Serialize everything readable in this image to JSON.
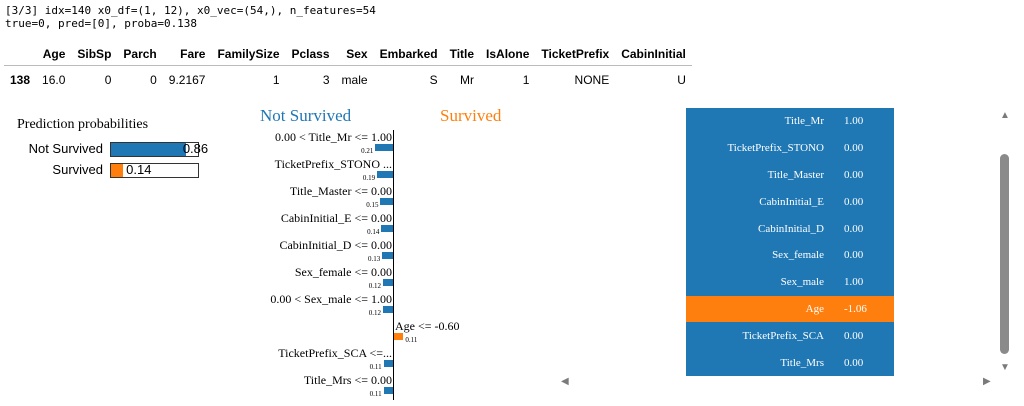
{
  "log": {
    "line1": "[3/3] idx=140 x0_df=(1, 12), x0_vec=(54,), n_features=54",
    "line2": "true=0, pred=[0], proba=0.138"
  },
  "dataframe": {
    "columns": [
      "",
      "Age",
      "SibSp",
      "Parch",
      "Fare",
      "FamilySize",
      "Pclass",
      "Sex",
      "Embarked",
      "Title",
      "IsAlone",
      "TicketPrefix",
      "CabinInitial"
    ],
    "row": [
      "138",
      "16.0",
      "0",
      "0",
      "9.2167",
      "1",
      "3",
      "male",
      "S",
      "Mr",
      "1",
      "NONE",
      "U"
    ]
  },
  "prediction_probabilities": {
    "title": "Prediction probabilities",
    "items": [
      {
        "label": "Not Survived",
        "value": "0.86",
        "fraction": 0.86,
        "color": "#1f77b4"
      },
      {
        "label": "Survived",
        "value": "0.14",
        "fraction": 0.14,
        "color": "#ff7f0e"
      }
    ]
  },
  "explanation": {
    "left_class": "Not Survived",
    "right_class": "Survived",
    "features": [
      {
        "label": "0.00 < Title_Mr <= 1.00",
        "weight": "0.21",
        "side": "left"
      },
      {
        "label": "TicketPrefix_STONO ...",
        "weight": "0.19",
        "side": "left"
      },
      {
        "label": "Title_Master <= 0.00",
        "weight": "0.15",
        "side": "left"
      },
      {
        "label": "CabinInitial_E <= 0.00",
        "weight": "0.14",
        "side": "left"
      },
      {
        "label": "CabinInitial_D <= 0.00",
        "weight": "0.13",
        "side": "left"
      },
      {
        "label": "Sex_female <= 0.00",
        "weight": "0.12",
        "side": "left"
      },
      {
        "label": "0.00 < Sex_male <= 1.00",
        "weight": "0.12",
        "side": "left"
      },
      {
        "label": "Age <= -0.60",
        "weight": "0.11",
        "side": "right"
      },
      {
        "label": "TicketPrefix_SCA <=...",
        "weight": "0.11",
        "side": "left"
      },
      {
        "label": "Title_Mrs <= 0.00",
        "weight": "0.11",
        "side": "left"
      }
    ]
  },
  "feature_table": {
    "rows": [
      {
        "name": "Title_Mr",
        "value": "1.00",
        "highlight": false
      },
      {
        "name": "TicketPrefix_STONO",
        "value": "0.00",
        "highlight": false
      },
      {
        "name": "Title_Master",
        "value": "0.00",
        "highlight": false
      },
      {
        "name": "CabinInitial_E",
        "value": "0.00",
        "highlight": false
      },
      {
        "name": "CabinInitial_D",
        "value": "0.00",
        "highlight": false
      },
      {
        "name": "Sex_female",
        "value": "0.00",
        "highlight": false
      },
      {
        "name": "Sex_male",
        "value": "1.00",
        "highlight": false
      },
      {
        "name": "Age",
        "value": "-1.06",
        "highlight": true
      },
      {
        "name": "TicketPrefix_SCA",
        "value": "0.00",
        "highlight": false
      },
      {
        "name": "Title_Mrs",
        "value": "0.00",
        "highlight": false
      }
    ]
  },
  "icons": {
    "scroll_up": "▲",
    "scroll_down": "▼",
    "scroll_left": "◀",
    "scroll_right": "▶"
  }
}
